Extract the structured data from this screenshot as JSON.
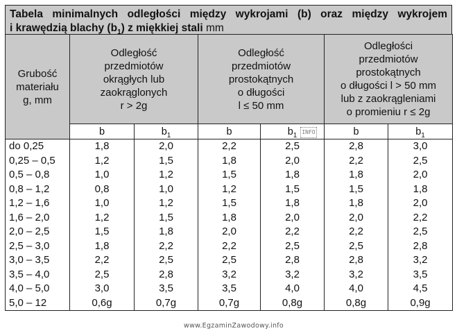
{
  "title": {
    "line1": "Tabela minimalnych odległości między wykrojami (b) oraz między wykrojem",
    "line2_prefix": "i krawędzią blachy (b",
    "line2_sub": "1",
    "line2_bold_suffix": ") z miękkiej stali",
    "line2_normal_suffix": " mm"
  },
  "header": {
    "thickness": [
      "Grubość",
      "materiału",
      "g, mm"
    ],
    "group1": [
      "Odległość",
      "przedmiotów",
      "okrągłych lub",
      "zaokrąglonych",
      "r > 2g"
    ],
    "group2": [
      "Odległość",
      "przedmiotów",
      "prostokątnych",
      "o długości",
      "l ≤ 50 mm"
    ],
    "group3": [
      "Odległości",
      "przedmiotów",
      "prostokątnych",
      "o długości l > 50 mm",
      "lub z zaokrągleniami",
      "o promieniu r ≤ 2g"
    ],
    "col_b": "b",
    "col_b1_base": "b",
    "col_b1_sub": "1"
  },
  "rows": [
    {
      "g": "do 0,25",
      "v": [
        "1,8",
        "2,0",
        "2,2",
        "2,5",
        "2,8",
        "3,0"
      ]
    },
    {
      "g": "0,25 – 0,5",
      "v": [
        "1,2",
        "1,5",
        "1,8",
        "2,0",
        "2,2",
        "2,5"
      ]
    },
    {
      "g": "0,5 – 0,8",
      "v": [
        "1,0",
        "1,2",
        "1,5",
        "1,8",
        "1,8",
        "2,0"
      ]
    },
    {
      "g": "0,8 – 1,2",
      "v": [
        "0,8",
        "1,0",
        "1,2",
        "1,5",
        "1,5",
        "1,8"
      ]
    },
    {
      "g": "1,2 – 1,6",
      "v": [
        "1,0",
        "1,2",
        "1,5",
        "1,8",
        "1,8",
        "2,0"
      ]
    },
    {
      "g": "1,6 – 2,0",
      "v": [
        "1,2",
        "1,5",
        "1,8",
        "2,0",
        "2,0",
        "2,2"
      ]
    },
    {
      "g": "2,0 – 2,5",
      "v": [
        "1,5",
        "1,8",
        "2,0",
        "2,2",
        "2,2",
        "2,5"
      ]
    },
    {
      "g": "2,5 – 3,0",
      "v": [
        "1,8",
        "2,2",
        "2,2",
        "2,5",
        "2,5",
        "2,8"
      ]
    },
    {
      "g": "3,0 – 3,5",
      "v": [
        "2,2",
        "2,5",
        "2,5",
        "2,8",
        "2,8",
        "3,2"
      ]
    },
    {
      "g": "3,5 – 4,0",
      "v": [
        "2,5",
        "2,8",
        "3,2",
        "3,2",
        "3,2",
        "3,5"
      ]
    },
    {
      "g": "4,0 – 5,0",
      "v": [
        "3,0",
        "3,5",
        "3,5",
        "4,0",
        "4,0",
        "4,5"
      ]
    },
    {
      "g": "5,0 – 12",
      "v": [
        "0,6g",
        "0,7g",
        "0,7g",
        "0,8g",
        "0,8g",
        "0,9g"
      ]
    }
  ],
  "watermark": "www.EgzaminZawodowy.info",
  "stamp": "INFO"
}
